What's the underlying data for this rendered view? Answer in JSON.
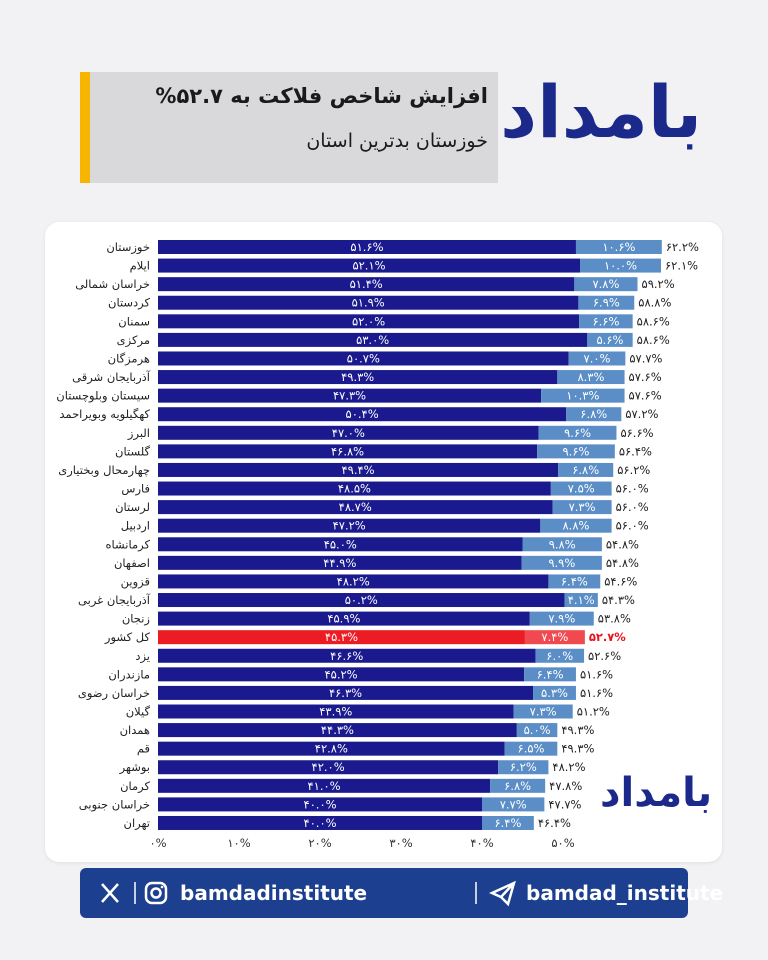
{
  "header": {
    "title": "افزایش شاخص فلاکت به ۵۲.۷%",
    "subtitle": "خوزستان بدترین استان",
    "logo": "بامداد"
  },
  "chart_data": {
    "type": "bar",
    "categories": [
      "خوزستان",
      "ایلام",
      "خراسان شمالی",
      "کردستان",
      "سمنان",
      "مرکزی",
      "هرمزگان",
      "آذربایجان شرقی",
      "سیستان وبلوچستان",
      "کهگیلویه وبویراحمد",
      "البرز",
      "گلستان",
      "چهارمحال وبختیاری",
      "فارس",
      "لرستان",
      "اردبیل",
      "کرمانشاه",
      "اصفهان",
      "قزوین",
      "آذربایجان غربی",
      "زنجان",
      "کل کشور",
      "یزد",
      "مازندران",
      "خراسان رضوی",
      "گیلان",
      "همدان",
      "قم",
      "بوشهر",
      "کرمان",
      "خراسان جنوبی",
      "تهران"
    ],
    "series": [
      {
        "color": "#1a1a8e",
        "values": [
          51.6,
          52.1,
          51.4,
          51.9,
          52.0,
          53.0,
          50.7,
          49.3,
          47.3,
          50.4,
          47.0,
          46.8,
          49.4,
          48.5,
          48.7,
          47.2,
          45.0,
          44.9,
          48.2,
          50.2,
          45.9,
          45.3,
          46.6,
          45.2,
          46.3,
          43.9,
          44.3,
          42.8,
          42.0,
          41.0,
          40.0,
          40.0
        ],
        "value_labels": [
          "۵۱.۶%",
          "۵۲.۱%",
          "۵۱.۴%",
          "۵۱.۹%",
          "۵۲.۰%",
          "۵۳.۰%",
          "۵۰.۷%",
          "۴۹.۳%",
          "۴۷.۳%",
          "۵۰.۴%",
          "۴۷.۰%",
          "۴۶.۸%",
          "۴۹.۴%",
          "۴۸.۵%",
          "۴۸.۷%",
          "۴۷.۲%",
          "۴۵.۰%",
          "۴۴.۹%",
          "۴۸.۲%",
          "۵۰.۲%",
          "۴۵.۹%",
          "۴۵.۳%",
          "۴۶.۶%",
          "۴۵.۲%",
          "۴۶.۳%",
          "۴۳.۹%",
          "۴۴.۳%",
          "۴۲.۸%",
          "۴۲.۰%",
          "۴۱.۰%",
          "۴۰.۰%",
          "۴۰.۰%"
        ]
      },
      {
        "color": "#5b8ec6",
        "values": [
          10.6,
          10.0,
          7.8,
          6.9,
          6.6,
          5.6,
          7.0,
          8.3,
          10.3,
          6.8,
          9.6,
          9.6,
          6.8,
          7.5,
          7.3,
          8.8,
          9.8,
          9.9,
          6.4,
          4.1,
          7.9,
          7.4,
          6.0,
          6.4,
          5.3,
          7.3,
          5.0,
          6.5,
          6.2,
          6.8,
          7.7,
          6.4
        ],
        "value_labels": [
          "۱۰.۶%",
          "۱۰.۰%",
          "۷.۸%",
          "۶.۹%",
          "۶.۶%",
          "۵.۶%",
          "۷.۰%",
          "۸.۳%",
          "۱۰.۳%",
          "۶.۸%",
          "۹.۶%",
          "۹.۶%",
          "۶.۸%",
          "۷.۵%",
          "۷.۳%",
          "۸.۸%",
          "۹.۸%",
          "۹.۹%",
          "۶.۴%",
          "۴.۱%",
          "۷.۹%",
          "۷.۴%",
          "۶.۰%",
          "۶.۴%",
          "۵.۳%",
          "۷.۳%",
          "۵.۰%",
          "۶.۵%",
          "۶.۲%",
          "۶.۸%",
          "۷.۷%",
          "۶.۴%"
        ]
      }
    ],
    "totals": {
      "values": [
        62.2,
        62.1,
        59.2,
        58.8,
        58.6,
        58.6,
        57.7,
        57.6,
        57.6,
        57.2,
        56.6,
        56.4,
        56.2,
        56.0,
        56.0,
        56.0,
        54.8,
        54.8,
        54.6,
        54.3,
        53.8,
        52.7,
        52.6,
        51.6,
        51.6,
        51.2,
        49.3,
        49.3,
        48.2,
        47.8,
        47.7,
        46.4
      ],
      "value_labels": [
        "۶۲.۲%",
        "۶۲.۱%",
        "۵۹.۲%",
        "۵۸.۸%",
        "۵۸.۶%",
        "۵۸.۶%",
        "۵۷.۷%",
        "۵۷.۶%",
        "۵۷.۶%",
        "۵۷.۲%",
        "۵۶.۶%",
        "۵۶.۴%",
        "۵۶.۲%",
        "۵۶.۰%",
        "۵۶.۰%",
        "۵۶.۰%",
        "۵۴.۸%",
        "۵۴.۸%",
        "۵۴.۶%",
        "۵۴.۳%",
        "۵۳.۸%",
        "۵۲.۷%",
        "۵۲.۶%",
        "۵۱.۶%",
        "۵۱.۶%",
        "۵۱.۲%",
        "۴۹.۳%",
        "۴۹.۳%",
        "۴۸.۲%",
        "۴۷.۸%",
        "۴۷.۷%",
        "۴۶.۴%"
      ]
    },
    "highlight": {
      "category": "کل کشور",
      "colors": [
        "#ec1c24",
        "#f04a50"
      ],
      "label_color": "#e8141c"
    },
    "xlim": [
      0,
      70
    ],
    "xticks": [
      {
        "value": 0,
        "label": "۰%"
      },
      {
        "value": 10,
        "label": "۱۰%"
      },
      {
        "value": 20,
        "label": "۲۰%"
      },
      {
        "value": 30,
        "label": "۳۰%"
      },
      {
        "value": 40,
        "label": "۴۰%"
      },
      {
        "value": 50,
        "label": "۵۰%"
      }
    ]
  },
  "footer": {
    "handle_1": "bamdadinstitute",
    "handle_2": "bamdad_institute"
  }
}
